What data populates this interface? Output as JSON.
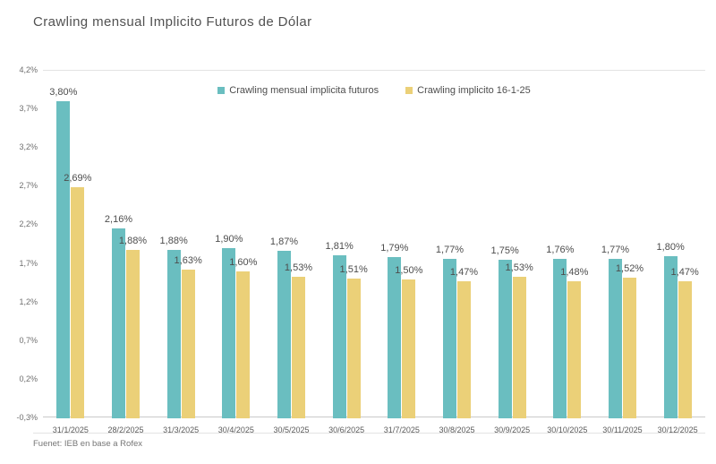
{
  "page": {
    "title": "Crawling mensual Implicito Futuros de Dólar",
    "footer": "Fuenet: IEB en base a Rofex"
  },
  "chart_data": {
    "type": "bar",
    "title": "Crawling mensual Implicito Futuros de Dólar",
    "categories": [
      "31/1/2025",
      "28/2/2025",
      "31/3/2025",
      "30/4/2025",
      "30/5/2025",
      "30/6/2025",
      "31/7/2025",
      "30/8/2025",
      "30/9/2025",
      "30/10/2025",
      "30/11/2025",
      "30/12/2025"
    ],
    "series": [
      {
        "name": "Crawling mensual implicita futuros",
        "color": "#6abec0",
        "values": [
          3.8,
          2.16,
          1.88,
          1.9,
          1.87,
          1.81,
          1.79,
          1.77,
          1.75,
          1.76,
          1.77,
          1.8
        ],
        "labels": [
          "3,80%",
          "2,16%",
          "1,88%",
          "1,90%",
          "1,87%",
          "1,81%",
          "1,79%",
          "1,77%",
          "1,75%",
          "1,76%",
          "1,77%",
          "1,80%"
        ]
      },
      {
        "name": "Crawling implicito 16-1-25",
        "color": "#ebd078",
        "values": [
          2.69,
          1.88,
          1.63,
          1.6,
          1.53,
          1.51,
          1.5,
          1.47,
          1.53,
          1.48,
          1.52,
          1.47
        ],
        "labels": [
          "2,69%",
          "1,88%",
          "1,63%",
          "1,60%",
          "1,53%",
          "1,51%",
          "1,50%",
          "1,47%",
          "1,53%",
          "1,48%",
          "1,52%",
          "1,47%"
        ]
      }
    ],
    "ylim": [
      -0.3,
      4.2
    ],
    "yticks": [
      {
        "value": 4.2,
        "label": "4,2%"
      },
      {
        "value": 3.7,
        "label": "3,7%"
      },
      {
        "value": 3.2,
        "label": "3,2%"
      },
      {
        "value": 2.7,
        "label": "2,7%"
      },
      {
        "value": 2.2,
        "label": "2,2%"
      },
      {
        "value": 1.7,
        "label": "1,7%"
      },
      {
        "value": 1.2,
        "label": "1,2%"
      },
      {
        "value": 0.7,
        "label": "0,7%"
      },
      {
        "value": 0.2,
        "label": "0,2%"
      },
      {
        "value": -0.3,
        "label": "-0,3%"
      }
    ],
    "legend_position": "top-center",
    "grid": "top-and-bottom-lines-only",
    "source": "Fuenet: IEB en base a Rofex"
  }
}
